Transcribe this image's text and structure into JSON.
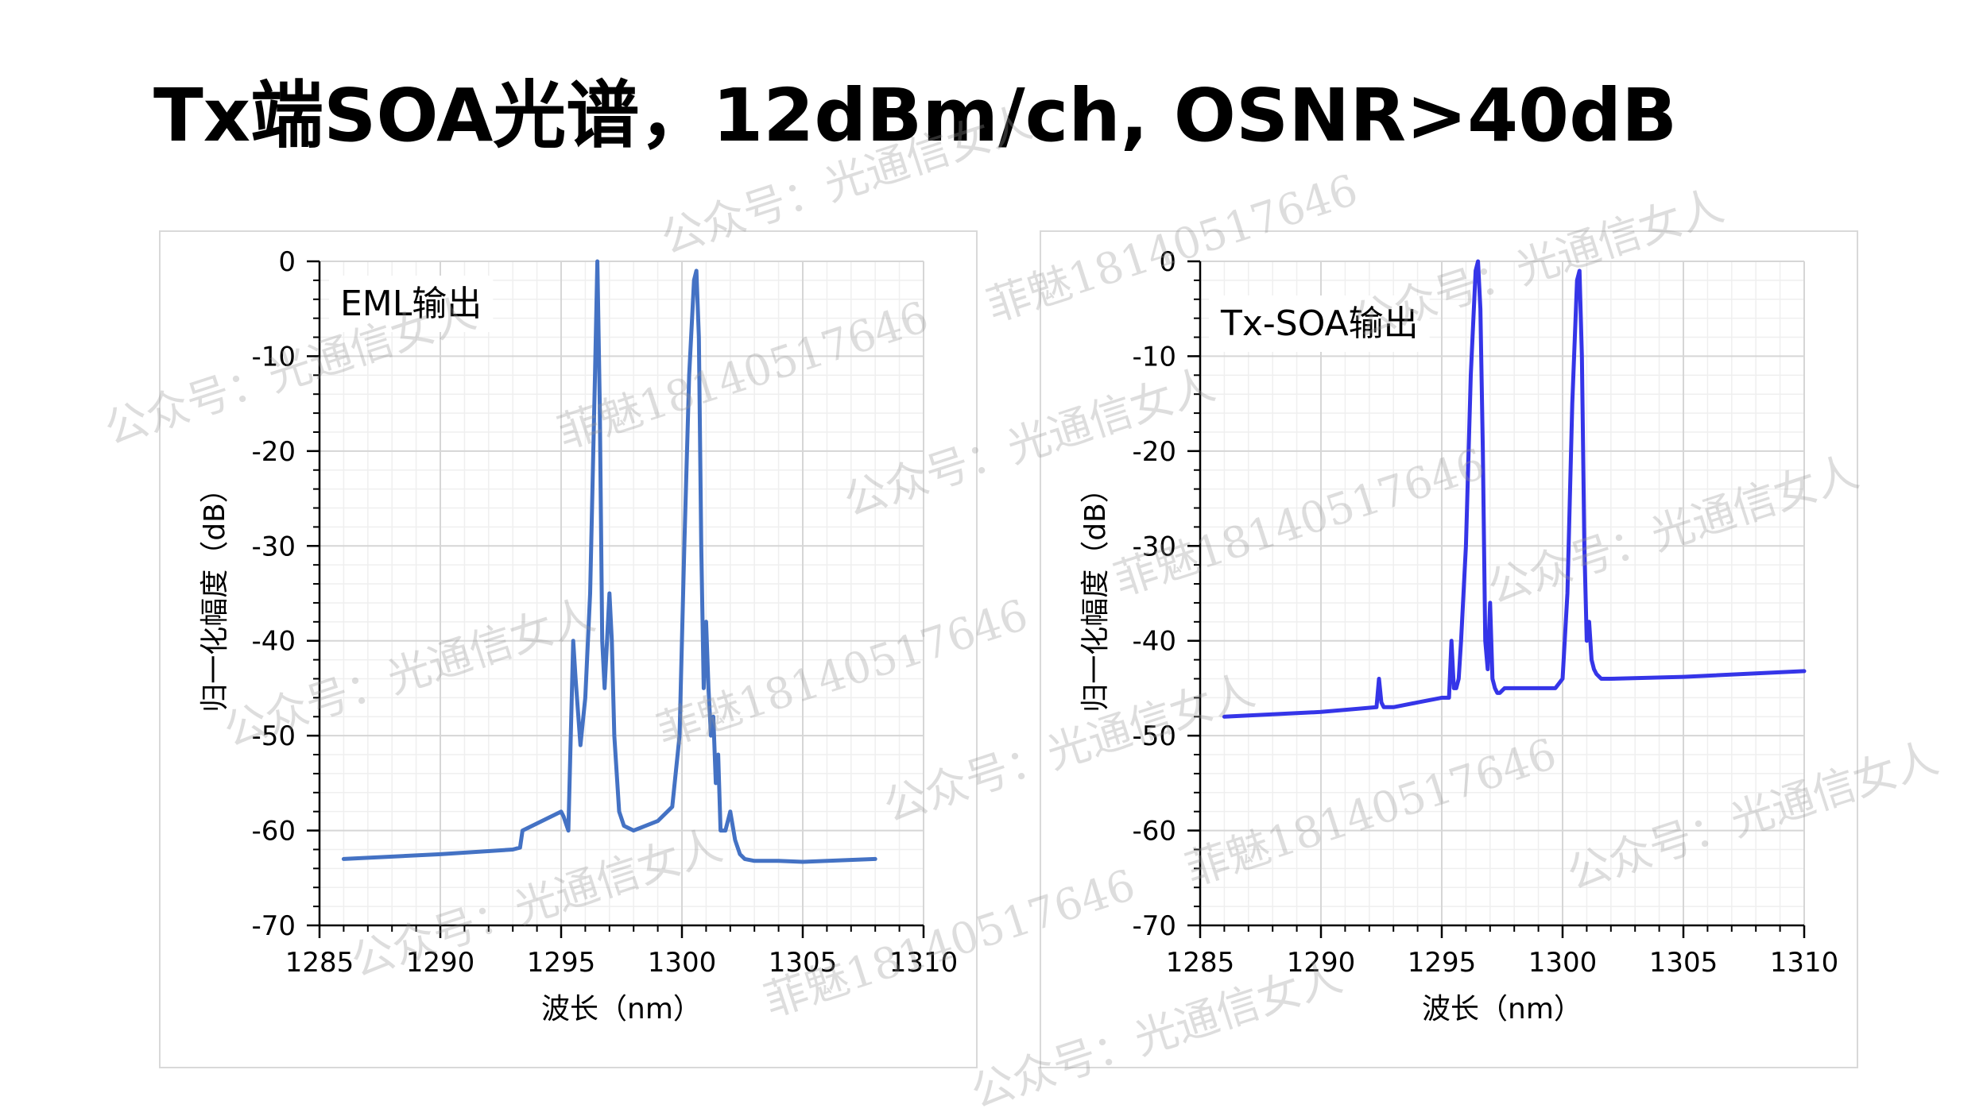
{
  "slide": {
    "title": "Tx端SOA光谱，12dBm/ch, OSNR>40dB"
  },
  "watermarks": [
    "公众号：光通信女人",
    "菲魅18140517646"
  ],
  "chart_data": [
    {
      "type": "line",
      "annotation": "EML输出",
      "xlabel": "波长（nm）",
      "ylabel": "归一化幅度（dB）",
      "xlim": [
        1285,
        1310
      ],
      "ylim": [
        -70,
        0
      ],
      "xticks": [
        1285,
        1290,
        1295,
        1300,
        1305,
        1310
      ],
      "yticks": [
        0,
        -10,
        -20,
        -30,
        -40,
        -50,
        -60,
        -70
      ],
      "grid": true,
      "color": "#4472c4",
      "series": [
        {
          "x": [
            1286,
            1290,
            1293,
            1293.3,
            1293.4,
            1295,
            1295.1,
            1295.3,
            1295.5,
            1295.6,
            1295.8,
            1296,
            1296.2,
            1296.4,
            1296.5,
            1296.6,
            1296.7,
            1296.8,
            1297,
            1297.1,
            1297.2,
            1297.4,
            1297.6,
            1298,
            1299,
            1299.6,
            1299.9,
            1300.1,
            1300.3,
            1300.5,
            1300.6,
            1300.7,
            1300.8,
            1300.9,
            1301,
            1301.1,
            1301.2,
            1301.3,
            1301.4,
            1301.5,
            1301.6,
            1301.8,
            1302,
            1302.2,
            1302.4,
            1302.6,
            1303,
            1304,
            1305,
            1308
          ],
          "y": [
            -63,
            -62.5,
            -62,
            -61.8,
            -60,
            -58,
            -58.5,
            -60,
            -40,
            -44,
            -51,
            -46,
            -35,
            -12,
            0,
            -15,
            -40,
            -45,
            -35,
            -40,
            -50,
            -58,
            -59.5,
            -60,
            -59,
            -57.5,
            -50,
            -30,
            -12,
            -2,
            -1,
            -8,
            -30,
            -45,
            -38,
            -45,
            -50,
            -48,
            -55,
            -52,
            -60,
            -60,
            -58,
            -61,
            -62.5,
            -63,
            -63.2,
            -63.2,
            -63.3,
            -63
          ]
        }
      ]
    },
    {
      "type": "line",
      "annotation": "Tx-SOA输出",
      "xlabel": "波长（nm）",
      "ylabel": "归一化幅度（dB）",
      "xlim": [
        1285,
        1310
      ],
      "ylim": [
        -70,
        0
      ],
      "xticks": [
        1285,
        1290,
        1295,
        1300,
        1305,
        1310
      ],
      "yticks": [
        0,
        -10,
        -20,
        -30,
        -40,
        -50,
        -60,
        -70
      ],
      "grid": true,
      "color": "#3535e8",
      "series": [
        {
          "x": [
            1286,
            1290,
            1292.3,
            1292.4,
            1292.5,
            1292.6,
            1293,
            1294,
            1295,
            1295.2,
            1295.3,
            1295.4,
            1295.5,
            1295.6,
            1295.7,
            1295.8,
            1296,
            1296.2,
            1296.4,
            1296.5,
            1296.6,
            1296.7,
            1296.8,
            1296.9,
            1297,
            1297.1,
            1297.2,
            1297.3,
            1297.4,
            1297.6,
            1298,
            1299,
            1299.7,
            1300,
            1300.2,
            1300.4,
            1300.6,
            1300.7,
            1300.8,
            1300.9,
            1301,
            1301.1,
            1301.2,
            1301.3,
            1301.4,
            1301.6,
            1301.8,
            1302,
            1305,
            1310
          ],
          "y": [
            -48,
            -47.5,
            -47,
            -44,
            -46.5,
            -47,
            -47,
            -46.5,
            -46,
            -46,
            -46,
            -40,
            -45,
            -45,
            -44,
            -40,
            -30,
            -12,
            -1,
            0,
            -5,
            -20,
            -40,
            -43,
            -36,
            -44,
            -45,
            -45.5,
            -45.5,
            -45,
            -45,
            -45,
            -45,
            -44,
            -35,
            -15,
            -2,
            -1,
            -10,
            -30,
            -40,
            -38,
            -42,
            -43,
            -43.5,
            -44,
            -44,
            -44,
            -43.8,
            -43.2
          ]
        }
      ]
    }
  ]
}
